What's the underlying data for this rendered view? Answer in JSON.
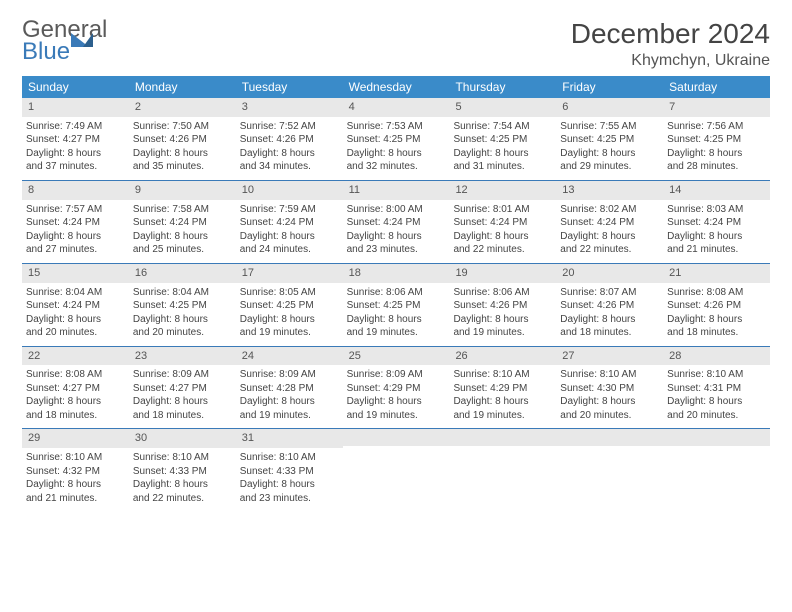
{
  "logo": {
    "word1": "General",
    "word2": "Blue"
  },
  "title": "December 2024",
  "location": "Khymchyn, Ukraine",
  "day_names": [
    "Sunday",
    "Monday",
    "Tuesday",
    "Wednesday",
    "Thursday",
    "Friday",
    "Saturday"
  ],
  "colors": {
    "header_bg": "#3a8bc9",
    "week_border": "#3a7ab8",
    "daynum_bg": "#e8e8e8",
    "logo_blue": "#3a7ab8"
  },
  "weeks": [
    [
      {
        "num": "1",
        "sunrise": "Sunrise: 7:49 AM",
        "sunset": "Sunset: 4:27 PM",
        "day1": "Daylight: 8 hours",
        "day2": "and 37 minutes."
      },
      {
        "num": "2",
        "sunrise": "Sunrise: 7:50 AM",
        "sunset": "Sunset: 4:26 PM",
        "day1": "Daylight: 8 hours",
        "day2": "and 35 minutes."
      },
      {
        "num": "3",
        "sunrise": "Sunrise: 7:52 AM",
        "sunset": "Sunset: 4:26 PM",
        "day1": "Daylight: 8 hours",
        "day2": "and 34 minutes."
      },
      {
        "num": "4",
        "sunrise": "Sunrise: 7:53 AM",
        "sunset": "Sunset: 4:25 PM",
        "day1": "Daylight: 8 hours",
        "day2": "and 32 minutes."
      },
      {
        "num": "5",
        "sunrise": "Sunrise: 7:54 AM",
        "sunset": "Sunset: 4:25 PM",
        "day1": "Daylight: 8 hours",
        "day2": "and 31 minutes."
      },
      {
        "num": "6",
        "sunrise": "Sunrise: 7:55 AM",
        "sunset": "Sunset: 4:25 PM",
        "day1": "Daylight: 8 hours",
        "day2": "and 29 minutes."
      },
      {
        "num": "7",
        "sunrise": "Sunrise: 7:56 AM",
        "sunset": "Sunset: 4:25 PM",
        "day1": "Daylight: 8 hours",
        "day2": "and 28 minutes."
      }
    ],
    [
      {
        "num": "8",
        "sunrise": "Sunrise: 7:57 AM",
        "sunset": "Sunset: 4:24 PM",
        "day1": "Daylight: 8 hours",
        "day2": "and 27 minutes."
      },
      {
        "num": "9",
        "sunrise": "Sunrise: 7:58 AM",
        "sunset": "Sunset: 4:24 PM",
        "day1": "Daylight: 8 hours",
        "day2": "and 25 minutes."
      },
      {
        "num": "10",
        "sunrise": "Sunrise: 7:59 AM",
        "sunset": "Sunset: 4:24 PM",
        "day1": "Daylight: 8 hours",
        "day2": "and 24 minutes."
      },
      {
        "num": "11",
        "sunrise": "Sunrise: 8:00 AM",
        "sunset": "Sunset: 4:24 PM",
        "day1": "Daylight: 8 hours",
        "day2": "and 23 minutes."
      },
      {
        "num": "12",
        "sunrise": "Sunrise: 8:01 AM",
        "sunset": "Sunset: 4:24 PM",
        "day1": "Daylight: 8 hours",
        "day2": "and 22 minutes."
      },
      {
        "num": "13",
        "sunrise": "Sunrise: 8:02 AM",
        "sunset": "Sunset: 4:24 PM",
        "day1": "Daylight: 8 hours",
        "day2": "and 22 minutes."
      },
      {
        "num": "14",
        "sunrise": "Sunrise: 8:03 AM",
        "sunset": "Sunset: 4:24 PM",
        "day1": "Daylight: 8 hours",
        "day2": "and 21 minutes."
      }
    ],
    [
      {
        "num": "15",
        "sunrise": "Sunrise: 8:04 AM",
        "sunset": "Sunset: 4:24 PM",
        "day1": "Daylight: 8 hours",
        "day2": "and 20 minutes."
      },
      {
        "num": "16",
        "sunrise": "Sunrise: 8:04 AM",
        "sunset": "Sunset: 4:25 PM",
        "day1": "Daylight: 8 hours",
        "day2": "and 20 minutes."
      },
      {
        "num": "17",
        "sunrise": "Sunrise: 8:05 AM",
        "sunset": "Sunset: 4:25 PM",
        "day1": "Daylight: 8 hours",
        "day2": "and 19 minutes."
      },
      {
        "num": "18",
        "sunrise": "Sunrise: 8:06 AM",
        "sunset": "Sunset: 4:25 PM",
        "day1": "Daylight: 8 hours",
        "day2": "and 19 minutes."
      },
      {
        "num": "19",
        "sunrise": "Sunrise: 8:06 AM",
        "sunset": "Sunset: 4:26 PM",
        "day1": "Daylight: 8 hours",
        "day2": "and 19 minutes."
      },
      {
        "num": "20",
        "sunrise": "Sunrise: 8:07 AM",
        "sunset": "Sunset: 4:26 PM",
        "day1": "Daylight: 8 hours",
        "day2": "and 18 minutes."
      },
      {
        "num": "21",
        "sunrise": "Sunrise: 8:08 AM",
        "sunset": "Sunset: 4:26 PM",
        "day1": "Daylight: 8 hours",
        "day2": "and 18 minutes."
      }
    ],
    [
      {
        "num": "22",
        "sunrise": "Sunrise: 8:08 AM",
        "sunset": "Sunset: 4:27 PM",
        "day1": "Daylight: 8 hours",
        "day2": "and 18 minutes."
      },
      {
        "num": "23",
        "sunrise": "Sunrise: 8:09 AM",
        "sunset": "Sunset: 4:27 PM",
        "day1": "Daylight: 8 hours",
        "day2": "and 18 minutes."
      },
      {
        "num": "24",
        "sunrise": "Sunrise: 8:09 AM",
        "sunset": "Sunset: 4:28 PM",
        "day1": "Daylight: 8 hours",
        "day2": "and 19 minutes."
      },
      {
        "num": "25",
        "sunrise": "Sunrise: 8:09 AM",
        "sunset": "Sunset: 4:29 PM",
        "day1": "Daylight: 8 hours",
        "day2": "and 19 minutes."
      },
      {
        "num": "26",
        "sunrise": "Sunrise: 8:10 AM",
        "sunset": "Sunset: 4:29 PM",
        "day1": "Daylight: 8 hours",
        "day2": "and 19 minutes."
      },
      {
        "num": "27",
        "sunrise": "Sunrise: 8:10 AM",
        "sunset": "Sunset: 4:30 PM",
        "day1": "Daylight: 8 hours",
        "day2": "and 20 minutes."
      },
      {
        "num": "28",
        "sunrise": "Sunrise: 8:10 AM",
        "sunset": "Sunset: 4:31 PM",
        "day1": "Daylight: 8 hours",
        "day2": "and 20 minutes."
      }
    ],
    [
      {
        "num": "29",
        "sunrise": "Sunrise: 8:10 AM",
        "sunset": "Sunset: 4:32 PM",
        "day1": "Daylight: 8 hours",
        "day2": "and 21 minutes."
      },
      {
        "num": "30",
        "sunrise": "Sunrise: 8:10 AM",
        "sunset": "Sunset: 4:33 PM",
        "day1": "Daylight: 8 hours",
        "day2": "and 22 minutes."
      },
      {
        "num": "31",
        "sunrise": "Sunrise: 8:10 AM",
        "sunset": "Sunset: 4:33 PM",
        "day1": "Daylight: 8 hours",
        "day2": "and 23 minutes."
      },
      {
        "empty": true
      },
      {
        "empty": true
      },
      {
        "empty": true
      },
      {
        "empty": true
      }
    ]
  ]
}
